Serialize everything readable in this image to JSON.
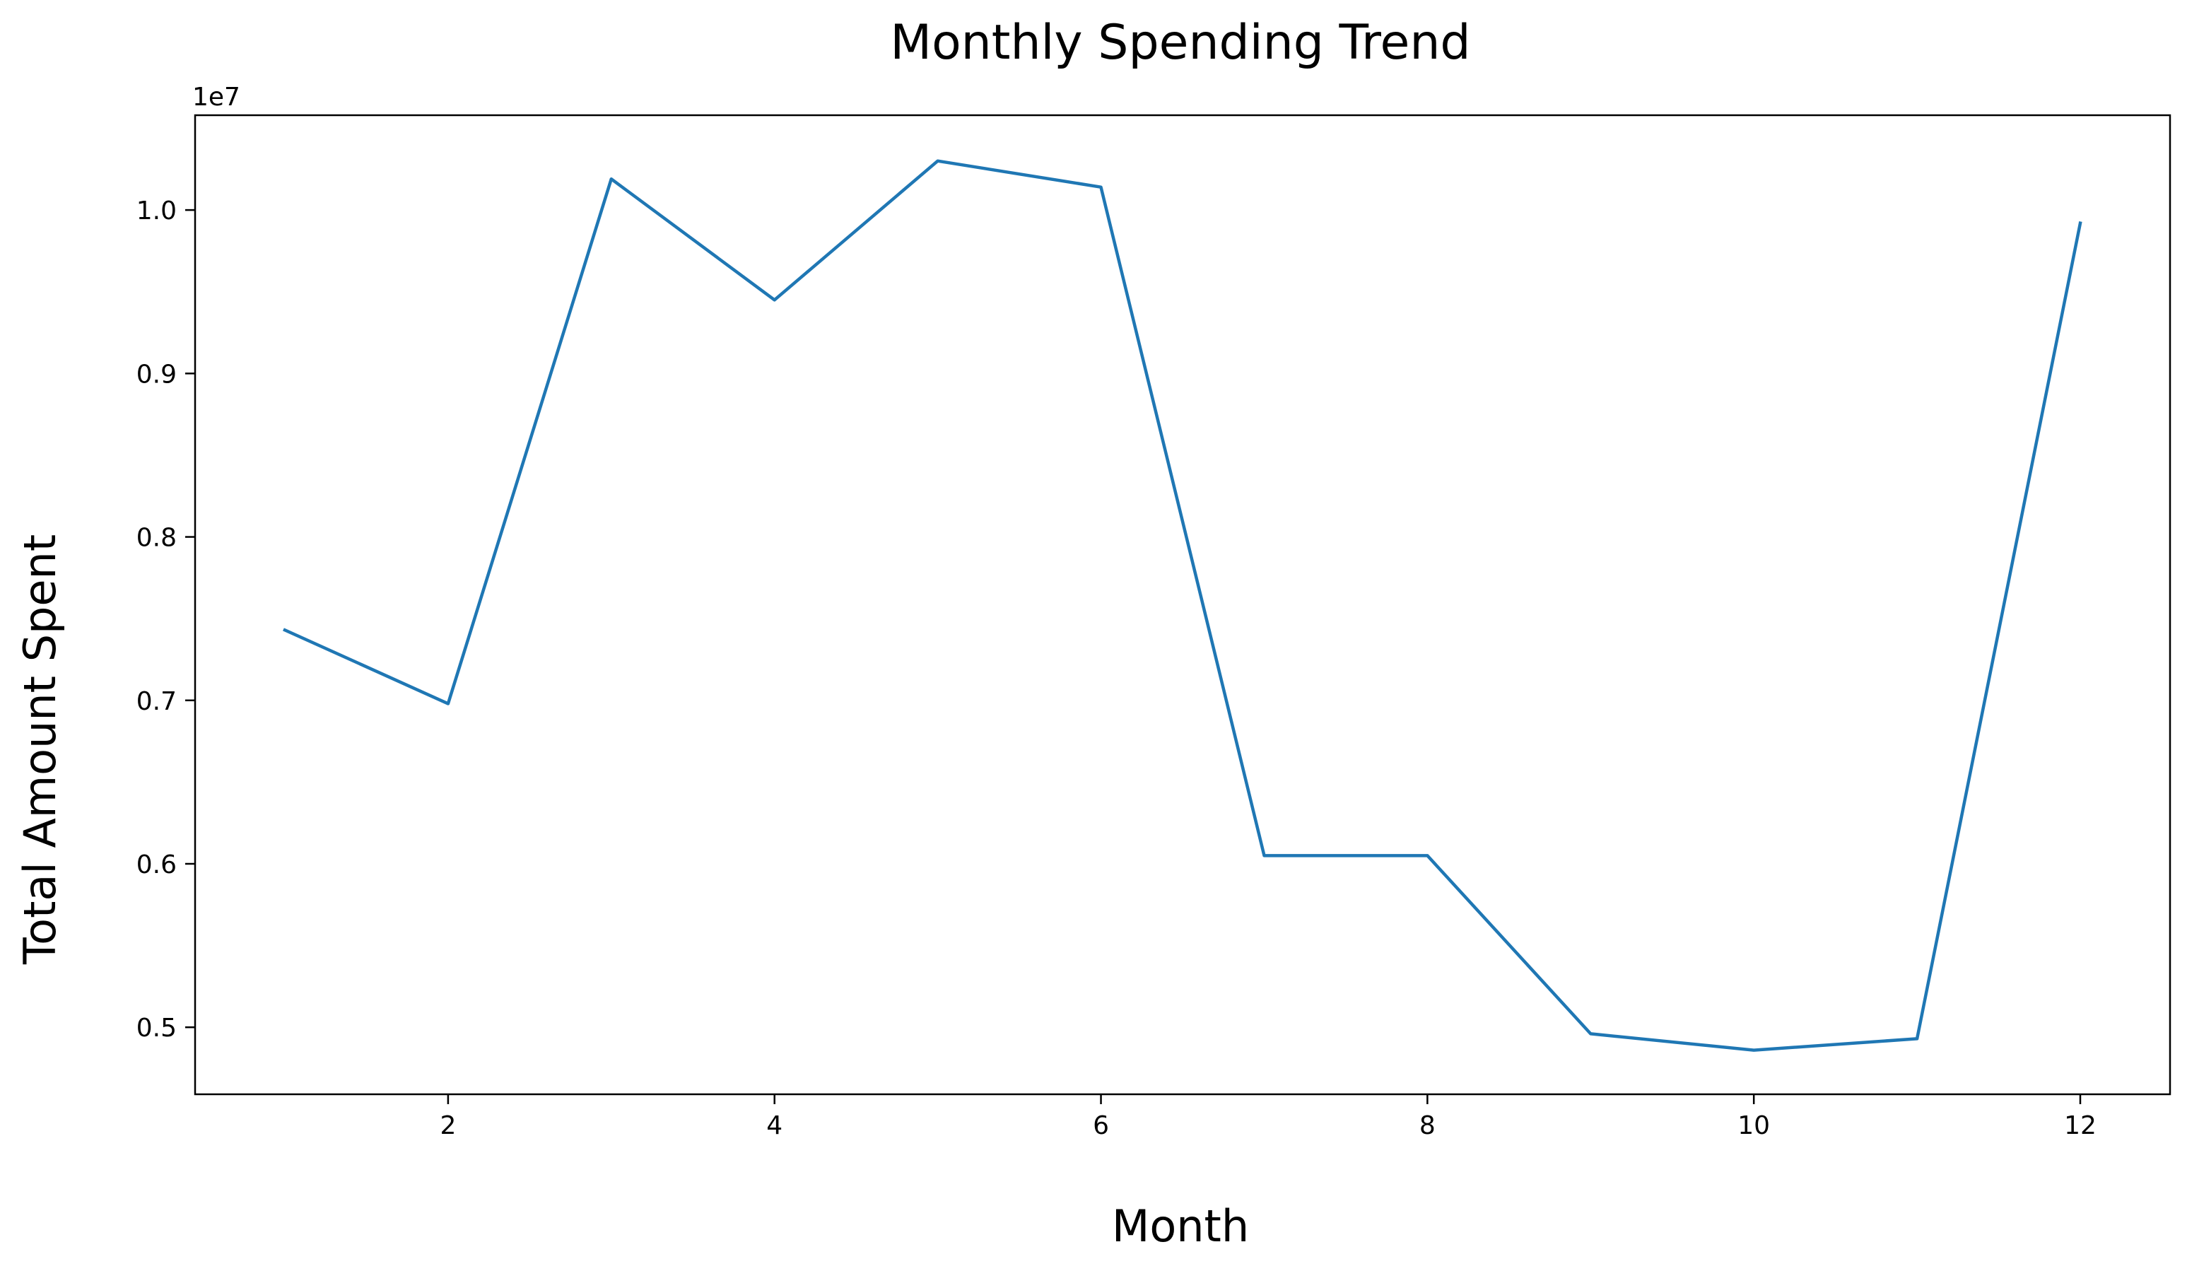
{
  "chart_data": {
    "type": "line",
    "title": "Monthly Spending Trend",
    "xlabel": "Month",
    "ylabel": "Total Amount Spent",
    "y_offset_label": "1e7",
    "x": [
      1,
      2,
      3,
      4,
      5,
      6,
      7,
      8,
      9,
      10,
      11,
      12
    ],
    "series": [
      {
        "values": [
          7430000,
          6980000,
          10190000,
          9450000,
          10300000,
          10140000,
          6050000,
          6050000,
          4960000,
          4860000,
          4930000,
          9920000
        ]
      }
    ],
    "xlim": [
      0.45,
      12.55
    ],
    "ylim": [
      4590000,
      10580000
    ],
    "x_ticks": [
      2,
      4,
      6,
      8,
      10,
      12
    ],
    "x_tick_labels": [
      "2",
      "4",
      "6",
      "8",
      "10",
      "12"
    ],
    "y_ticks": [
      5000000,
      6000000,
      7000000,
      8000000,
      9000000,
      10000000
    ],
    "y_tick_labels": [
      "0.5",
      "0.6",
      "0.7",
      "0.8",
      "0.9",
      "1.0"
    ],
    "grid": false,
    "line_color": "#1f77b4"
  }
}
